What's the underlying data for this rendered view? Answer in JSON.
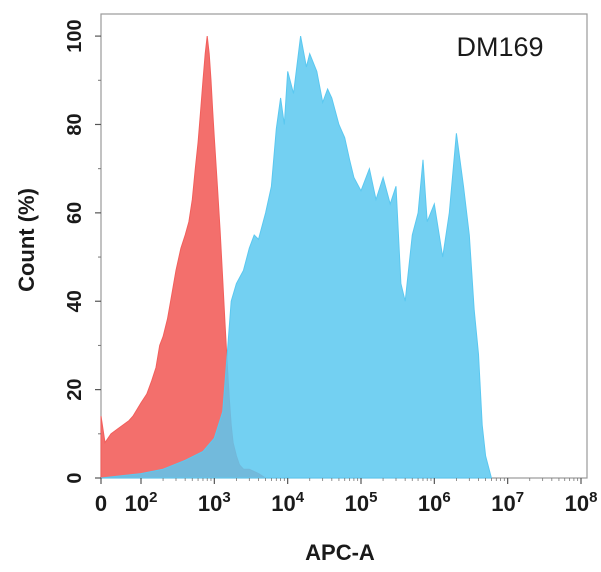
{
  "chart_data": {
    "type": "area",
    "title": "DM169",
    "xlabel": "APC-A",
    "ylabel": "Count  (%)",
    "xscale": "biexponential (0 then log decades)",
    "xlim": [
      0,
      100000000
    ],
    "ylim": [
      0,
      105
    ],
    "x_ticks": [
      {
        "value": 0,
        "label": "0",
        "exp": ""
      },
      {
        "value": 100,
        "label": "10",
        "exp": "2"
      },
      {
        "value": 1000,
        "label": "10",
        "exp": "3"
      },
      {
        "value": 10000,
        "label": "10",
        "exp": "4"
      },
      {
        "value": 100000,
        "label": "10",
        "exp": "5"
      },
      {
        "value": 1000000,
        "label": "10",
        "exp": "6"
      },
      {
        "value": 10000000,
        "label": "10",
        "exp": "7"
      },
      {
        "value": 100000000,
        "label": "10",
        "exp": "8"
      }
    ],
    "y_ticks": [
      {
        "value": 0,
        "label": "0"
      },
      {
        "value": 20,
        "label": "20"
      },
      {
        "value": 40,
        "label": "40"
      },
      {
        "value": 60,
        "label": "60"
      },
      {
        "value": 80,
        "label": "80"
      },
      {
        "value": 100,
        "label": "100"
      }
    ],
    "grid": false,
    "series": [
      {
        "color": "#f25f5c",
        "opacity": 0.9,
        "x": [
          0,
          10,
          25,
          40,
          55,
          70,
          80,
          100,
          120,
          140,
          160,
          180,
          200,
          230,
          260,
          300,
          350,
          400,
          450,
          500,
          550,
          600,
          650,
          700,
          750,
          800,
          850,
          900,
          950,
          1000,
          1100,
          1200,
          1300,
          1400,
          1500,
          1600,
          1700,
          1800,
          2000,
          2200,
          2500,
          3000,
          4000,
          5000,
          6000
        ],
        "y": [
          14,
          8,
          10,
          11,
          12,
          13,
          14,
          17,
          19,
          22,
          25,
          30,
          32,
          36,
          41,
          47,
          52,
          55,
          58,
          63,
          70,
          76,
          83,
          90,
          96,
          100,
          96,
          90,
          83,
          77,
          66,
          56,
          45,
          35,
          26,
          18,
          12,
          8,
          5,
          3,
          2,
          2,
          1,
          0,
          0
        ]
      },
      {
        "color": "#5bc8f0",
        "opacity": 0.85,
        "x": [
          0,
          100,
          200,
          400,
          700,
          1000,
          1300,
          1500,
          1700,
          2000,
          2500,
          3000,
          3500,
          4000,
          5000,
          6000,
          7000,
          8000,
          9000,
          10000,
          12000,
          15000,
          18000,
          20000,
          25000,
          30000,
          35000,
          40000,
          50000,
          60000,
          70000,
          80000,
          100000,
          130000,
          160000,
          200000,
          250000,
          300000,
          350000,
          400000,
          500000,
          600000,
          700000,
          800000,
          1000000,
          1300000,
          1600000,
          2000000,
          2500000,
          3000000,
          3500000,
          4000000,
          4500000,
          5000000,
          6000000
        ],
        "y": [
          0,
          1,
          2,
          4,
          6,
          9,
          15,
          28,
          40,
          44,
          47,
          52,
          55,
          54,
          60,
          66,
          79,
          86,
          80,
          92,
          87,
          100,
          93,
          96,
          92,
          85,
          88,
          86,
          80,
          77,
          72,
          68,
          65,
          70,
          63,
          68,
          62,
          66,
          44,
          40,
          55,
          60,
          72,
          58,
          62,
          50,
          60,
          78,
          66,
          55,
          38,
          28,
          12,
          5,
          0
        ]
      }
    ]
  }
}
